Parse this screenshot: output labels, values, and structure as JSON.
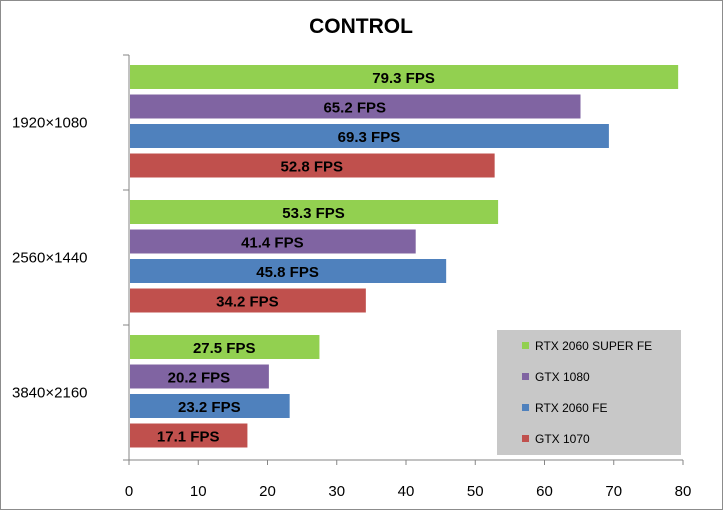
{
  "chart_data": {
    "type": "bar",
    "orientation": "horizontal",
    "title": "CONTROL",
    "xlabel": "",
    "ylabel": "",
    "xlim": [
      0,
      80
    ],
    "x_ticks": [
      "0",
      "10",
      "20",
      "30",
      "40",
      "50",
      "60",
      "70",
      "80"
    ],
    "categories": [
      "1920×1080",
      "2560×1440",
      "3840×2160"
    ],
    "value_suffix": " FPS",
    "grid": false,
    "legend_position": "bottom-right",
    "series": [
      {
        "name": "RTX 2060 SUPER FE",
        "color": "#92d050",
        "values": [
          79.3,
          53.3,
          27.5
        ]
      },
      {
        "name": "GTX 1080",
        "color": "#8064a2",
        "values": [
          65.2,
          41.4,
          20.2
        ]
      },
      {
        "name": "RTX 2060 FE",
        "color": "#4f81bd",
        "values": [
          69.3,
          45.8,
          23.2
        ]
      },
      {
        "name": "GTX 1070",
        "color": "#c0504d",
        "values": [
          52.8,
          34.2,
          17.1
        ]
      }
    ]
  }
}
